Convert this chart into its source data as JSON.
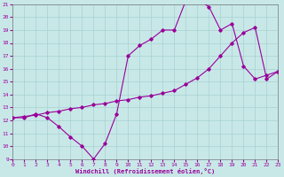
{
  "xlabel": "Windchill (Refroidissement éolien,°C)",
  "background_color": "#c8e8e8",
  "line_color": "#990099",
  "curve1_x": [
    0,
    1,
    2,
    3,
    4,
    5,
    6,
    7,
    8,
    9,
    10,
    11,
    12,
    13,
    14,
    15,
    16,
    17,
    18,
    19,
    20,
    21,
    22,
    23
  ],
  "curve1_y": [
    12.2,
    12.2,
    12.5,
    12.2,
    11.5,
    10.7,
    10.0,
    9.0,
    10.2,
    12.5,
    17.0,
    17.8,
    18.3,
    19.0,
    19.0,
    21.3,
    21.4,
    20.8,
    19.0,
    19.5,
    16.2,
    15.2,
    15.5,
    15.8
  ],
  "curve2_x": [
    0,
    1,
    2,
    3,
    4,
    5,
    6,
    7,
    8,
    9,
    10,
    11,
    12,
    13,
    14,
    15,
    16,
    17,
    18,
    19,
    20,
    21,
    22,
    23
  ],
  "curve2_y": [
    12.2,
    12.3,
    12.4,
    12.6,
    12.7,
    12.9,
    13.0,
    13.2,
    13.3,
    13.5,
    13.6,
    13.8,
    13.9,
    14.1,
    14.3,
    14.8,
    15.3,
    16.0,
    17.0,
    18.0,
    18.8,
    19.2,
    15.2,
    15.8
  ],
  "ylim": [
    9,
    21
  ],
  "xlim": [
    0,
    23
  ],
  "yticks": [
    9,
    10,
    11,
    12,
    13,
    14,
    15,
    16,
    17,
    18,
    19,
    20,
    21
  ],
  "xticks": [
    0,
    1,
    2,
    3,
    4,
    5,
    6,
    7,
    8,
    9,
    10,
    11,
    12,
    13,
    14,
    15,
    16,
    17,
    18,
    19,
    20,
    21,
    22,
    23
  ],
  "grid_color": "#a8d0d0",
  "marker": "D",
  "marker_size": 1.8,
  "linewidth": 0.8,
  "tick_fontsize": 4.5,
  "xlabel_fontsize": 5.0
}
